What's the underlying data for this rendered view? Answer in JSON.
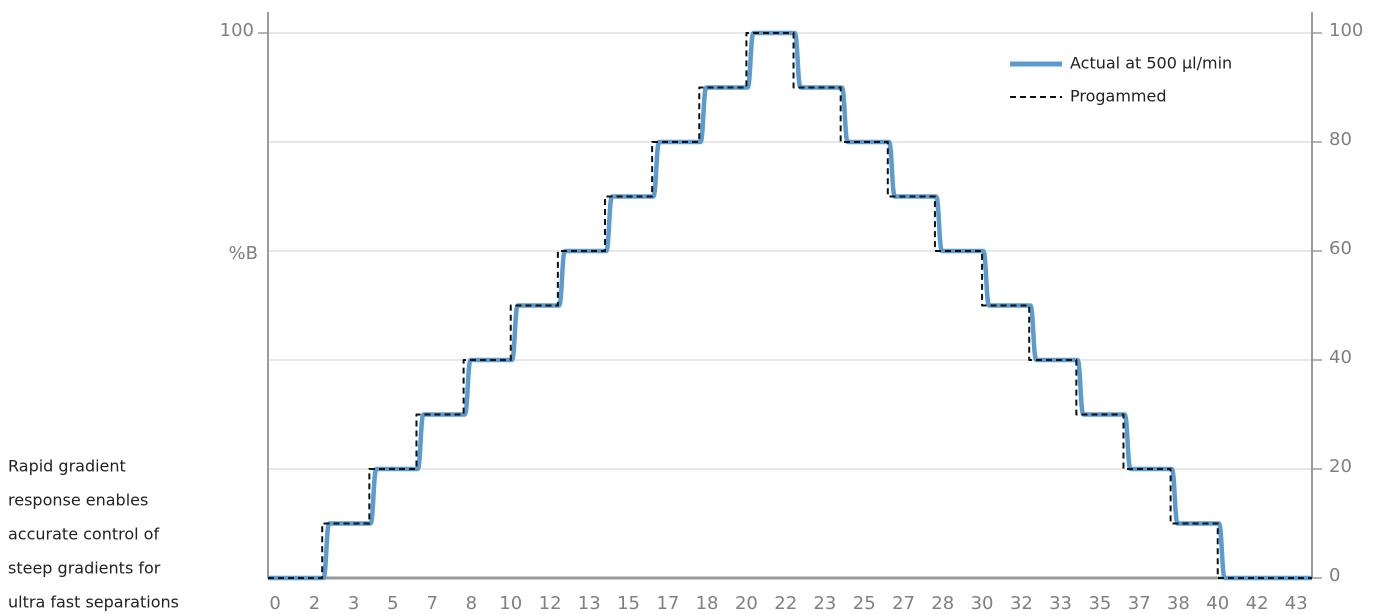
{
  "chart_data": {
    "type": "line",
    "ylabel": "%B",
    "annotation": [
      "Rapid gradient",
      "response enables",
      "accurate control of",
      "steep gradients for",
      "ultra fast separations"
    ],
    "xlim": [
      -0.3,
      44
    ],
    "xticks": [
      0,
      {
        "value": 1.67,
        "label": "2"
      },
      {
        "value": 3.33,
        "label": "3"
      },
      5,
      {
        "value": 6.67,
        "label": "7"
      },
      {
        "value": 8.33,
        "label": "8"
      },
      10,
      {
        "value": 11.67,
        "label": "12"
      },
      {
        "value": 13.33,
        "label": "13"
      },
      15,
      {
        "value": 16.67,
        "label": "17"
      },
      {
        "value": 18.33,
        "label": "18"
      },
      20,
      {
        "value": 21.67,
        "label": "22"
      },
      {
        "value": 23.33,
        "label": "23"
      },
      25,
      {
        "value": 26.67,
        "label": "27"
      },
      {
        "value": 28.33,
        "label": "28"
      },
      30,
      {
        "value": 31.67,
        "label": "32"
      },
      {
        "value": 33.33,
        "label": "33"
      },
      35,
      {
        "value": 36.67,
        "label": "37"
      },
      {
        "value": 38.33,
        "label": "38"
      },
      40,
      {
        "value": 41.67,
        "label": "42"
      },
      {
        "value": 43.33,
        "label": "43"
      }
    ],
    "ylim": [
      0,
      100
    ],
    "yticks": [
      100
    ],
    "y2lim": [
      0,
      100
    ],
    "y2ticks": [
      0,
      20,
      40,
      60,
      80,
      100
    ],
    "grid": true,
    "legend": "upper right",
    "series": [
      {
        "name": "Actual at 500 µl/min",
        "color": "#5b9bd0",
        "axis": "y",
        "x": [
          -0.3,
          2.05,
          2.3,
          4.05,
          4.3,
          6.05,
          6.3,
          8.05,
          8.3,
          10.05,
          10.3,
          12.05,
          12.3,
          14.05,
          14.3,
          16.05,
          16.3,
          18.05,
          18.3,
          20.05,
          20.3,
          22.05,
          22.3,
          24.05,
          24.3,
          26.05,
          26.3,
          28.05,
          28.3,
          30.05,
          30.3,
          32.05,
          32.3,
          34.05,
          34.3,
          36.05,
          36.3,
          38.05,
          38.3,
          40.05,
          40.3,
          44
        ],
        "values": [
          0,
          0,
          10,
          10,
          20,
          20,
          30,
          30,
          40,
          40,
          50,
          50,
          60,
          60,
          70,
          70,
          80,
          80,
          90,
          90,
          100,
          100,
          90,
          90,
          80,
          80,
          70,
          70,
          60,
          60,
          50,
          50,
          40,
          40,
          30,
          30,
          20,
          20,
          10,
          10,
          0,
          0
        ]
      },
      {
        "name": "Progammed",
        "color": "#111111",
        "dashed": true,
        "axis": "y",
        "x": [
          -0.3,
          2,
          2,
          4,
          4,
          6,
          6,
          8,
          8,
          10,
          10,
          12,
          12,
          14,
          14,
          16,
          16,
          18,
          18,
          20,
          20,
          22,
          22,
          24,
          24,
          26,
          26,
          28,
          28,
          30,
          30,
          32,
          32,
          34,
          34,
          36,
          36,
          38,
          38,
          40,
          40,
          44
        ],
        "values": [
          0,
          0,
          10,
          10,
          20,
          20,
          30,
          30,
          40,
          40,
          50,
          50,
          60,
          60,
          70,
          70,
          80,
          80,
          90,
          90,
          100,
          100,
          90,
          90,
          80,
          80,
          70,
          70,
          60,
          60,
          50,
          50,
          40,
          40,
          30,
          30,
          20,
          20,
          10,
          10,
          0,
          0
        ]
      }
    ]
  }
}
